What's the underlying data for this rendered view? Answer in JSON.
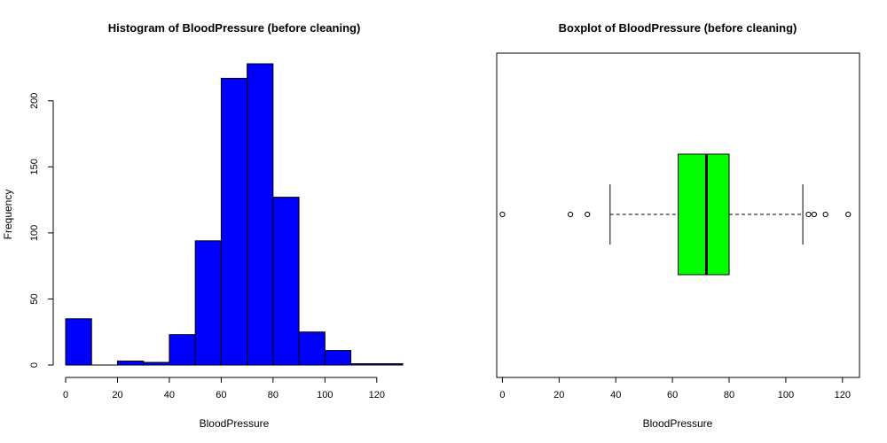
{
  "chart_data": [
    {
      "type": "bar",
      "title": "Histogram of BloodPressure (before cleaning)",
      "xlabel": "BloodPressure",
      "ylabel": "Frequency",
      "bins": [
        {
          "x0": 0,
          "x1": 10,
          "count": 35
        },
        {
          "x0": 10,
          "x1": 20,
          "count": 0
        },
        {
          "x0": 20,
          "x1": 30,
          "count": 3
        },
        {
          "x0": 30,
          "x1": 40,
          "count": 2
        },
        {
          "x0": 40,
          "x1": 50,
          "count": 23
        },
        {
          "x0": 50,
          "x1": 60,
          "count": 94
        },
        {
          "x0": 60,
          "x1": 70,
          "count": 217
        },
        {
          "x0": 70,
          "x1": 80,
          "count": 228
        },
        {
          "x0": 80,
          "x1": 90,
          "count": 127
        },
        {
          "x0": 90,
          "x1": 100,
          "count": 25
        },
        {
          "x0": 100,
          "x1": 110,
          "count": 11
        },
        {
          "x0": 110,
          "x1": 120,
          "count": 1
        },
        {
          "x0": 120,
          "x1": 130,
          "count": 1
        }
      ],
      "xlim": [
        0,
        130
      ],
      "ylim": [
        0,
        228
      ],
      "xticks": [
        0,
        20,
        40,
        60,
        80,
        100,
        120
      ],
      "yticks": [
        0,
        50,
        100,
        150,
        200
      ],
      "bar_color": "#0000ff",
      "grid": false
    },
    {
      "type": "boxplot",
      "title": "Boxplot of BloodPressure (before cleaning)",
      "xlabel": "BloodPressure",
      "orientation": "horizontal",
      "whisker_low": 38,
      "q1": 62,
      "median": 72,
      "q3": 80,
      "whisker_high": 106,
      "outliers": [
        0,
        24,
        30,
        108,
        110,
        114,
        122
      ],
      "xlim": [
        -2,
        126
      ],
      "xticks": [
        0,
        20,
        40,
        60,
        80,
        100,
        120
      ],
      "box_color": "#00ff00",
      "grid": false
    }
  ]
}
